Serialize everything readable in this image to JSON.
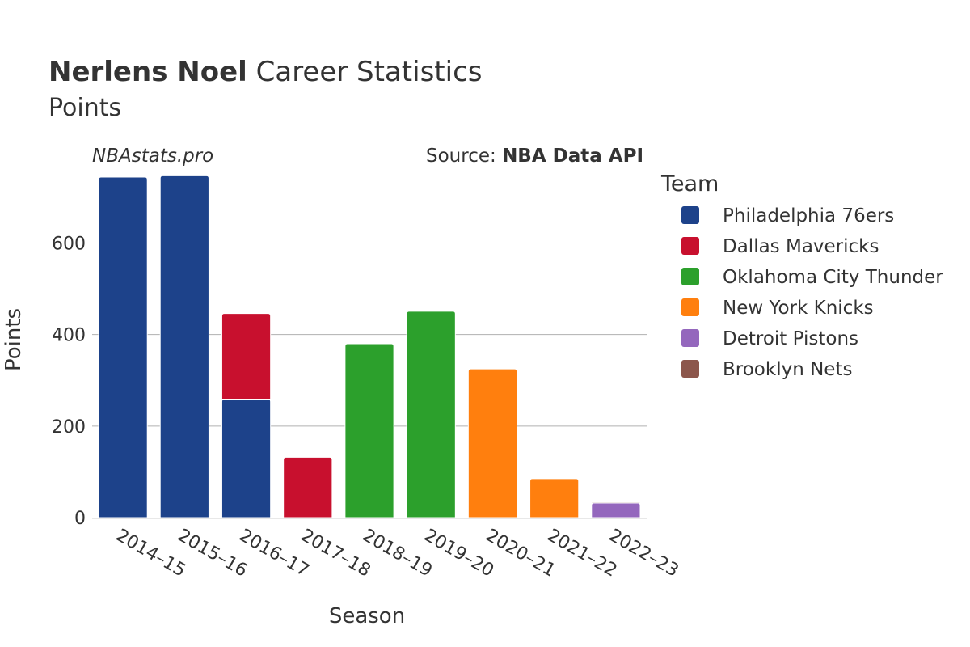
{
  "title": {
    "player": "Nerlens Noel",
    "rest": " Career Statistics"
  },
  "subtitle": "Points",
  "watermark": "NBAstats.pro",
  "source": {
    "prefix": "Source: ",
    "name": "NBA Data API"
  },
  "colors": {
    "Philadelphia 76ers": "#1d428a",
    "Dallas Mavericks": "#c8102e",
    "Oklahoma City Thunder": "#2ca02c",
    "New York Knicks": "#ff7f0e",
    "Detroit Pistons": "#9467bd",
    "Brooklyn Nets": "#8c564b",
    "grid": "#b0b0b0",
    "text": "#333333"
  },
  "chart_data": {
    "type": "bar",
    "stacked": true,
    "xlabel": "Season",
    "ylabel": "Points",
    "ylim": [
      0,
      760
    ],
    "yticks": [
      0,
      200,
      400,
      600
    ],
    "legend_title": "Team",
    "legend_position": "right",
    "categories": [
      "2014–15",
      "2015–16",
      "2016–17",
      "2017–18",
      "2018–19",
      "2019–20",
      "2020–21",
      "2021–22",
      "2022–23"
    ],
    "series": [
      {
        "name": "Philadelphia 76ers",
        "values": [
          744,
          747,
          259,
          0,
          0,
          0,
          0,
          0,
          0
        ]
      },
      {
        "name": "Dallas Mavericks",
        "values": [
          0,
          0,
          187,
          132,
          0,
          0,
          0,
          0,
          0
        ]
      },
      {
        "name": "Oklahoma City Thunder",
        "values": [
          0,
          0,
          0,
          0,
          380,
          451,
          0,
          0,
          0
        ]
      },
      {
        "name": "New York Knicks",
        "values": [
          0,
          0,
          0,
          0,
          0,
          0,
          325,
          85,
          0
        ]
      },
      {
        "name": "Detroit Pistons",
        "values": [
          0,
          0,
          0,
          0,
          0,
          0,
          0,
          0,
          32
        ]
      },
      {
        "name": "Brooklyn Nets",
        "values": [
          0,
          0,
          0,
          0,
          0,
          0,
          0,
          0,
          2
        ]
      }
    ]
  }
}
